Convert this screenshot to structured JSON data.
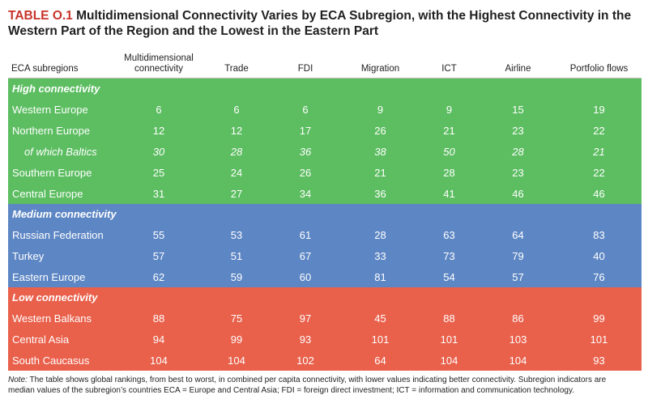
{
  "title": {
    "label": "TABLE O.1",
    "text": "Multidimensional Connectivity Varies by ECA Subregion, with the Highest Connectivity in the Western Part of the Region and the Lowest in the Eastern Part"
  },
  "table": {
    "headers": [
      "ECA subregions",
      "Multidimensional connectivity",
      "Trade",
      "FDI",
      "Migration",
      "ICT",
      "Airline",
      "Portfolio flows"
    ],
    "sections": [
      {
        "name": "High connectivity",
        "color": "#5cbd61",
        "rows": [
          {
            "label": "Western Europe",
            "values": [
              "6",
              "6",
              "6",
              "9",
              "9",
              "15",
              "19"
            ]
          },
          {
            "label": "Northern Europe",
            "values": [
              "12",
              "12",
              "17",
              "26",
              "21",
              "23",
              "22"
            ]
          },
          {
            "label": "of which Baltics",
            "values": [
              "30",
              "28",
              "36",
              "38",
              "50",
              "28",
              "21"
            ]
          },
          {
            "label": "Southern Europe",
            "values": [
              "25",
              "24",
              "26",
              "21",
              "28",
              "23",
              "22"
            ]
          },
          {
            "label": "Central Europe",
            "values": [
              "31",
              "27",
              "34",
              "36",
              "41",
              "46",
              "46"
            ]
          }
        ]
      },
      {
        "name": "Medium connectivity",
        "color": "#5d86c4",
        "rows": [
          {
            "label": "Russian Federation",
            "values": [
              "55",
              "53",
              "61",
              "28",
              "63",
              "64",
              "83"
            ]
          },
          {
            "label": "Turkey",
            "values": [
              "57",
              "51",
              "67",
              "33",
              "73",
              "79",
              "40"
            ]
          },
          {
            "label": "Eastern Europe",
            "values": [
              "62",
              "59",
              "60",
              "81",
              "54",
              "57",
              "76"
            ]
          }
        ]
      },
      {
        "name": "Low connectivity",
        "color": "#e9604b",
        "rows": [
          {
            "label": "Western Balkans",
            "values": [
              "88",
              "75",
              "97",
              "45",
              "88",
              "86",
              "99"
            ]
          },
          {
            "label": "Central Asia",
            "values": [
              "94",
              "99",
              "93",
              "101",
              "101",
              "103",
              "101"
            ]
          },
          {
            "label": "South Caucasus",
            "values": [
              "104",
              "104",
              "102",
              "64",
              "104",
              "104",
              "93"
            ]
          }
        ]
      }
    ]
  },
  "note": {
    "label": "Note:",
    "text": "The table shows global rankings, from best to worst, in combined per capita connectivity, with lower values indicating better connectivity. Subregion indicators are median values of the subregion’s countries ECA = Europe and Central Asia; FDI = foreign direct investment; ICT = information and communication technology."
  }
}
